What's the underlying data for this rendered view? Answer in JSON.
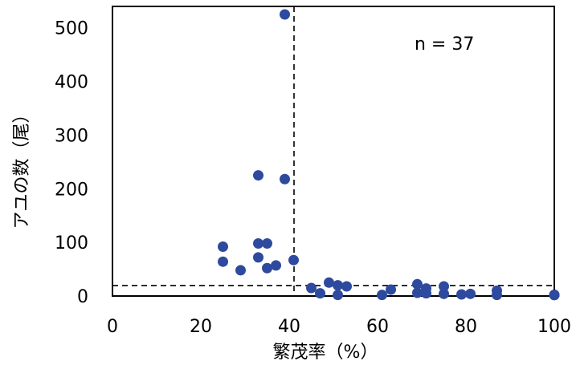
{
  "chart_data": {
    "type": "scatter",
    "xlabel": "繁茂率（%）",
    "ylabel": "アユの数（尾）",
    "annotation": "n = 37",
    "xlim": [
      0,
      100
    ],
    "ylim": [
      0,
      540
    ],
    "x_ticks": [
      "0",
      "20",
      "40",
      "60",
      "80",
      "100"
    ],
    "y_ticks": [
      "0",
      "100",
      "200",
      "300",
      "400",
      "500"
    ],
    "grid": false,
    "legend": "none",
    "reference_lines": [
      {
        "orientation": "vertical",
        "x": 40,
        "style": "dashed"
      },
      {
        "orientation": "horizontal",
        "y": 30,
        "style": "dashed"
      }
    ],
    "marker_color": "#2E4A9E",
    "points": [
      {
        "x": 39,
        "y": 525
      },
      {
        "x": 33,
        "y": 225
      },
      {
        "x": 39,
        "y": 218
      },
      {
        "x": 25,
        "y": 92
      },
      {
        "x": 33,
        "y": 98
      },
      {
        "x": 35,
        "y": 98
      },
      {
        "x": 25,
        "y": 64
      },
      {
        "x": 33,
        "y": 72
      },
      {
        "x": 41,
        "y": 67
      },
      {
        "x": 37,
        "y": 57
      },
      {
        "x": 35,
        "y": 52
      },
      {
        "x": 29,
        "y": 48
      },
      {
        "x": 49,
        "y": 25
      },
      {
        "x": 51,
        "y": 20
      },
      {
        "x": 53,
        "y": 18
      },
      {
        "x": 45,
        "y": 15
      },
      {
        "x": 47,
        "y": 5
      },
      {
        "x": 51,
        "y": 2
      },
      {
        "x": 61,
        "y": 2
      },
      {
        "x": 63,
        "y": 12
      },
      {
        "x": 69,
        "y": 22
      },
      {
        "x": 71,
        "y": 14
      },
      {
        "x": 69,
        "y": 6
      },
      {
        "x": 71,
        "y": 5
      },
      {
        "x": 75,
        "y": 18
      },
      {
        "x": 75,
        "y": 4
      },
      {
        "x": 79,
        "y": 3
      },
      {
        "x": 81,
        "y": 4
      },
      {
        "x": 87,
        "y": 10
      },
      {
        "x": 87,
        "y": 2
      },
      {
        "x": 100,
        "y": 2
      },
      {
        "x": 100,
        "y": 2
      },
      {
        "x": 100,
        "y": 2
      },
      {
        "x": 100,
        "y": 2
      },
      {
        "x": 100,
        "y": 2
      },
      {
        "x": 100,
        "y": 2
      },
      {
        "x": 100,
        "y": 2
      }
    ]
  }
}
